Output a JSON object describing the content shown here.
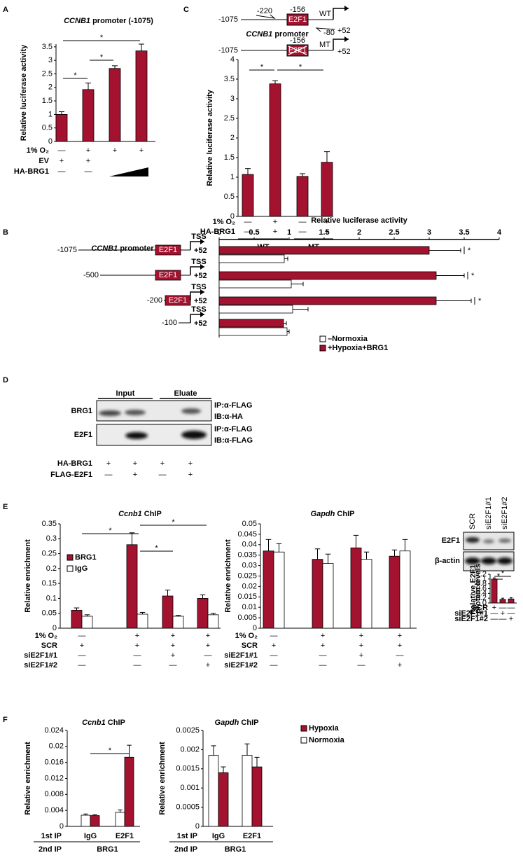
{
  "panels": [
    "A",
    "C",
    "B",
    "D",
    "E",
    "F"
  ],
  "promoter_c": {
    "title": "CCNB1 promoter",
    "wt": {
      "start": "-1075",
      "primer_f": "-220",
      "site": "-156",
      "box": "E2F1",
      "label": "WT",
      "end": "+52",
      "primer_r": "-80"
    },
    "mt": {
      "start": "-1075",
      "site": "-156",
      "box": "E2F1",
      "label": "MT",
      "end": "+52"
    }
  },
  "blot_d": {
    "groups": [
      "Input",
      "Eluate"
    ],
    "rows": [
      {
        "label": "BRG1",
        "ip": "IP:α-FLAG",
        "ib": "IB:α-HA"
      },
      {
        "label": "E2F1",
        "ip": "IP:α-FLAG",
        "ib": "IB:α-FLAG"
      }
    ],
    "conditions": [
      {
        "label": "HA-BRG1",
        "signs": [
          "+",
          "+",
          "+",
          "+"
        ]
      },
      {
        "label": "FLAG-E2F1",
        "signs": [
          "—",
          "+",
          "—",
          "+"
        ]
      }
    ]
  },
  "blot_e": {
    "lanes": [
      "SCR",
      "siE2F1#1",
      "siE2F1#2"
    ],
    "rows": [
      "E2F1",
      "β-actin"
    ]
  },
  "chart_data": [
    {
      "type": "bar",
      "title": "CCNB1 promoter (-1075)",
      "ylabel": "Relative luciferase activity",
      "ylim": [
        0,
        3.6
      ],
      "yticks": [
        0,
        0.5,
        1,
        1.5,
        2,
        2.5,
        3,
        3.5
      ],
      "series": [
        {
          "color": "#a3122e",
          "values": [
            1.0,
            1.92,
            2.7,
            3.35
          ],
          "errors": [
            0.1,
            0.24,
            0.1,
            0.25
          ]
        }
      ],
      "conditions": [
        {
          "label": "1% O₂",
          "signs": [
            "—",
            "+",
            "+",
            "+"
          ]
        },
        {
          "label": "EV",
          "signs": [
            "+",
            "+",
            null,
            null
          ]
        },
        {
          "label": "HA-BRG1",
          "signs": [
            "—",
            "—",
            null,
            null
          ]
        }
      ],
      "significance": [
        "*",
        "*",
        "*"
      ]
    },
    {
      "type": "bar",
      "ylabel": "Relative luciferase activity",
      "ylim": [
        0,
        4
      ],
      "yticks": [
        0,
        0.5,
        1,
        1.5,
        2,
        2.5,
        3,
        3.5,
        4
      ],
      "series": [
        {
          "color": "#a3122e",
          "values": [
            1.07,
            3.38,
            1.02,
            1.38
          ],
          "errors": [
            0.15,
            0.08,
            0.07,
            0.27
          ]
        }
      ],
      "conditions": [
        {
          "label": "1% O₂",
          "signs": [
            "—",
            "+",
            "—",
            "+"
          ]
        },
        {
          "label": "HA-BRG1",
          "signs": [
            "—",
            "+",
            "—",
            "+"
          ]
        }
      ],
      "groups": [
        "WT",
        "MT"
      ],
      "significance": [
        "*",
        "*"
      ]
    },
    {
      "type": "barh",
      "title": "CCNB1 promoter",
      "xlabel": "Relative luciferase activity",
      "xlim": [
        0,
        4
      ],
      "xticks": [
        0,
        0.5,
        1,
        1.5,
        2,
        2.5,
        3,
        3.5,
        4
      ],
      "series": [
        {
          "name": "+Hypoxia+BRG1",
          "color": "#a3122e",
          "values": [
            3.0,
            3.1,
            3.1,
            0.92
          ],
          "errors": [
            0.45,
            0.4,
            0.5,
            0.04
          ]
        },
        {
          "name": "–Normoxia",
          "color": "#ffffff",
          "values": [
            0.93,
            1.03,
            1.05,
            0.97
          ],
          "errors": [
            0.05,
            0.17,
            0.22,
            0.03
          ]
        }
      ],
      "constructs": [
        {
          "start": "-1075",
          "box": "E2F1",
          "tss": "TSS",
          "end": "+52"
        },
        {
          "start": "-500",
          "box": "E2F1",
          "tss": "TSS",
          "end": "+52"
        },
        {
          "start": "-200",
          "box": "E2F1",
          "tss": "TSS",
          "end": "+52"
        },
        {
          "start": "-100",
          "tss": "TSS",
          "end": "+52"
        }
      ],
      "significance": [
        "*",
        "*",
        "*"
      ]
    },
    {
      "type": "bar",
      "title": "Ccnb1 ChIP",
      "ylabel": "Relative enrichment",
      "ylim": [
        0,
        0.35
      ],
      "yticks": [
        0,
        0.05,
        0.1,
        0.15,
        0.2,
        0.25,
        0.3,
        0.35
      ],
      "series": [
        {
          "name": "BRG1",
          "color": "#a3122e",
          "values": [
            0.06,
            0.28,
            0.108,
            0.1
          ],
          "errors": [
            0.008,
            0.04,
            0.02,
            0.012
          ]
        },
        {
          "name": "IgG",
          "color": "#ffffff",
          "values": [
            0.04,
            0.047,
            0.04,
            0.045
          ],
          "errors": [
            0.005,
            0.006,
            0.003,
            0.005
          ]
        }
      ],
      "conditions": [
        {
          "label": "1% O₂",
          "signs": [
            "—",
            "+",
            "+",
            "+"
          ]
        },
        {
          "label": "SCR",
          "signs": [
            "+",
            "+",
            "+",
            "+"
          ]
        },
        {
          "label": "siE2F1#1",
          "signs": [
            "—",
            "—",
            "+",
            "—"
          ]
        },
        {
          "label": "siE2F1#2",
          "signs": [
            "—",
            "—",
            "—",
            "+"
          ]
        }
      ],
      "significance": [
        "*",
        "*",
        "*"
      ]
    },
    {
      "type": "bar",
      "title": "Gapdh ChIP",
      "ylabel": "Relative enrichment",
      "ylim": [
        0,
        0.05
      ],
      "yticks": [
        0,
        0.005,
        0.01,
        0.015,
        0.02,
        0.025,
        0.03,
        0.035,
        0.04,
        0.045,
        0.05
      ],
      "series": [
        {
          "color": "#a3122e",
          "values": [
            0.037,
            0.033,
            0.0385,
            0.0345
          ],
          "errors": [
            0.0055,
            0.005,
            0.006,
            0.003
          ]
        },
        {
          "color": "#ffffff",
          "values": [
            0.0365,
            0.031,
            0.033,
            0.037
          ],
          "errors": [
            0.004,
            0.0045,
            0.0035,
            0.0055
          ]
        }
      ],
      "conditions": [
        {
          "label": "1% O₂",
          "signs": [
            "—",
            "+",
            "+",
            "+"
          ]
        },
        {
          "label": "SCR",
          "signs": [
            "+",
            "+",
            "+",
            "+"
          ]
        },
        {
          "label": "siE2F1#1",
          "signs": [
            "—",
            "—",
            "+",
            "—"
          ]
        },
        {
          "label": "siE2F1#2",
          "signs": [
            "—",
            "—",
            "—",
            "+"
          ]
        }
      ]
    },
    {
      "type": "bar",
      "ylabel": "Relative E2F1 protein levels",
      "ylim": [
        0,
        1.2
      ],
      "yticks": [
        0,
        0.2,
        0.4,
        0.6,
        0.8,
        1,
        1.2
      ],
      "series": [
        {
          "color": "#a3122e",
          "values": [
            1.0,
            0.15,
            0.17
          ],
          "errors": [
            0.05,
            0.05,
            0.05
          ]
        }
      ],
      "conditions": [
        {
          "label": "SCR",
          "signs": [
            "+",
            "—",
            "—"
          ]
        },
        {
          "label": "siE2F1#1",
          "signs": [
            "—",
            "+",
            "—"
          ]
        },
        {
          "label": "siE2F1#2",
          "signs": [
            "—",
            "—",
            "+"
          ]
        }
      ],
      "significance": [
        "*",
        "*"
      ]
    },
    {
      "type": "bar",
      "title": "Ccnb1 ChIP",
      "ylabel": "Relative enrichment",
      "ylim": [
        0,
        0.024
      ],
      "yticks": [
        0,
        0.004,
        0.008,
        0.012,
        0.016,
        0.02,
        0.024
      ],
      "categories": [
        "IgG",
        "E2F1"
      ],
      "category_label": "1st IP",
      "group_label": "2nd IP",
      "group": "BRG1",
      "series": [
        {
          "name": "Normoxia",
          "color": "#ffffff",
          "values": [
            0.0028,
            0.0035
          ],
          "errors": [
            0.0003,
            0.0006
          ]
        },
        {
          "name": "Hypoxia",
          "color": "#a3122e",
          "values": [
            0.0027,
            0.0173
          ],
          "errors": [
            0.0002,
            0.003
          ]
        }
      ],
      "significance": [
        "*"
      ]
    },
    {
      "type": "bar",
      "title": "Gapdh ChIP",
      "ylabel": "Relative enrichment",
      "ylim": [
        0,
        0.0025
      ],
      "yticks": [
        0,
        0.0005,
        0.001,
        0.0015,
        0.002,
        0.0025
      ],
      "categories": [
        "IgG",
        "E2F1"
      ],
      "category_label": "1st IP",
      "group_label": "2nd IP",
      "group": "BRG1",
      "series": [
        {
          "name": "Normoxia",
          "color": "#ffffff",
          "values": [
            0.00185,
            0.00185
          ],
          "errors": [
            0.00025,
            0.0003
          ]
        },
        {
          "name": "Hypoxia",
          "color": "#a3122e",
          "values": [
            0.0014,
            0.00155
          ],
          "errors": [
            0.00015,
            0.00025
          ]
        }
      ]
    }
  ]
}
